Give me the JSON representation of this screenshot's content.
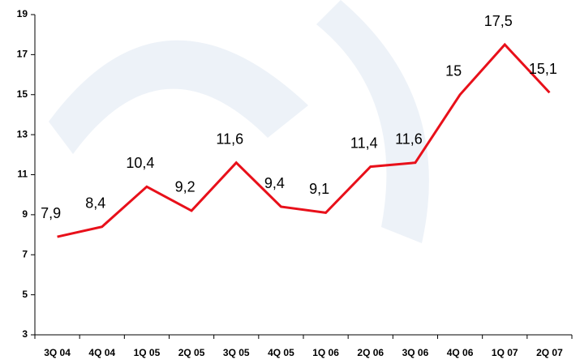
{
  "chart_data": {
    "type": "line",
    "categories": [
      "3Q 04",
      "4Q 04",
      "1Q 05",
      "2Q 05",
      "3Q 05",
      "4Q 05",
      "1Q 06",
      "2Q 06",
      "3Q 06",
      "4Q 06",
      "1Q 07",
      "2Q 07"
    ],
    "values": [
      7.9,
      8.4,
      10.4,
      9.2,
      11.6,
      9.4,
      9.1,
      11.4,
      11.6,
      15,
      17.5,
      15.1
    ],
    "value_labels": [
      "7,9",
      "8,4",
      "10,4",
      "9,2",
      "11,6",
      "9,4",
      "9,1",
      "11,4",
      "11,6",
      "15",
      "17,5",
      "15,1"
    ],
    "color": "#e8101a",
    "ylim": [
      3,
      19
    ],
    "yticks": [
      3,
      5,
      7,
      9,
      11,
      13,
      15,
      17,
      19
    ]
  }
}
